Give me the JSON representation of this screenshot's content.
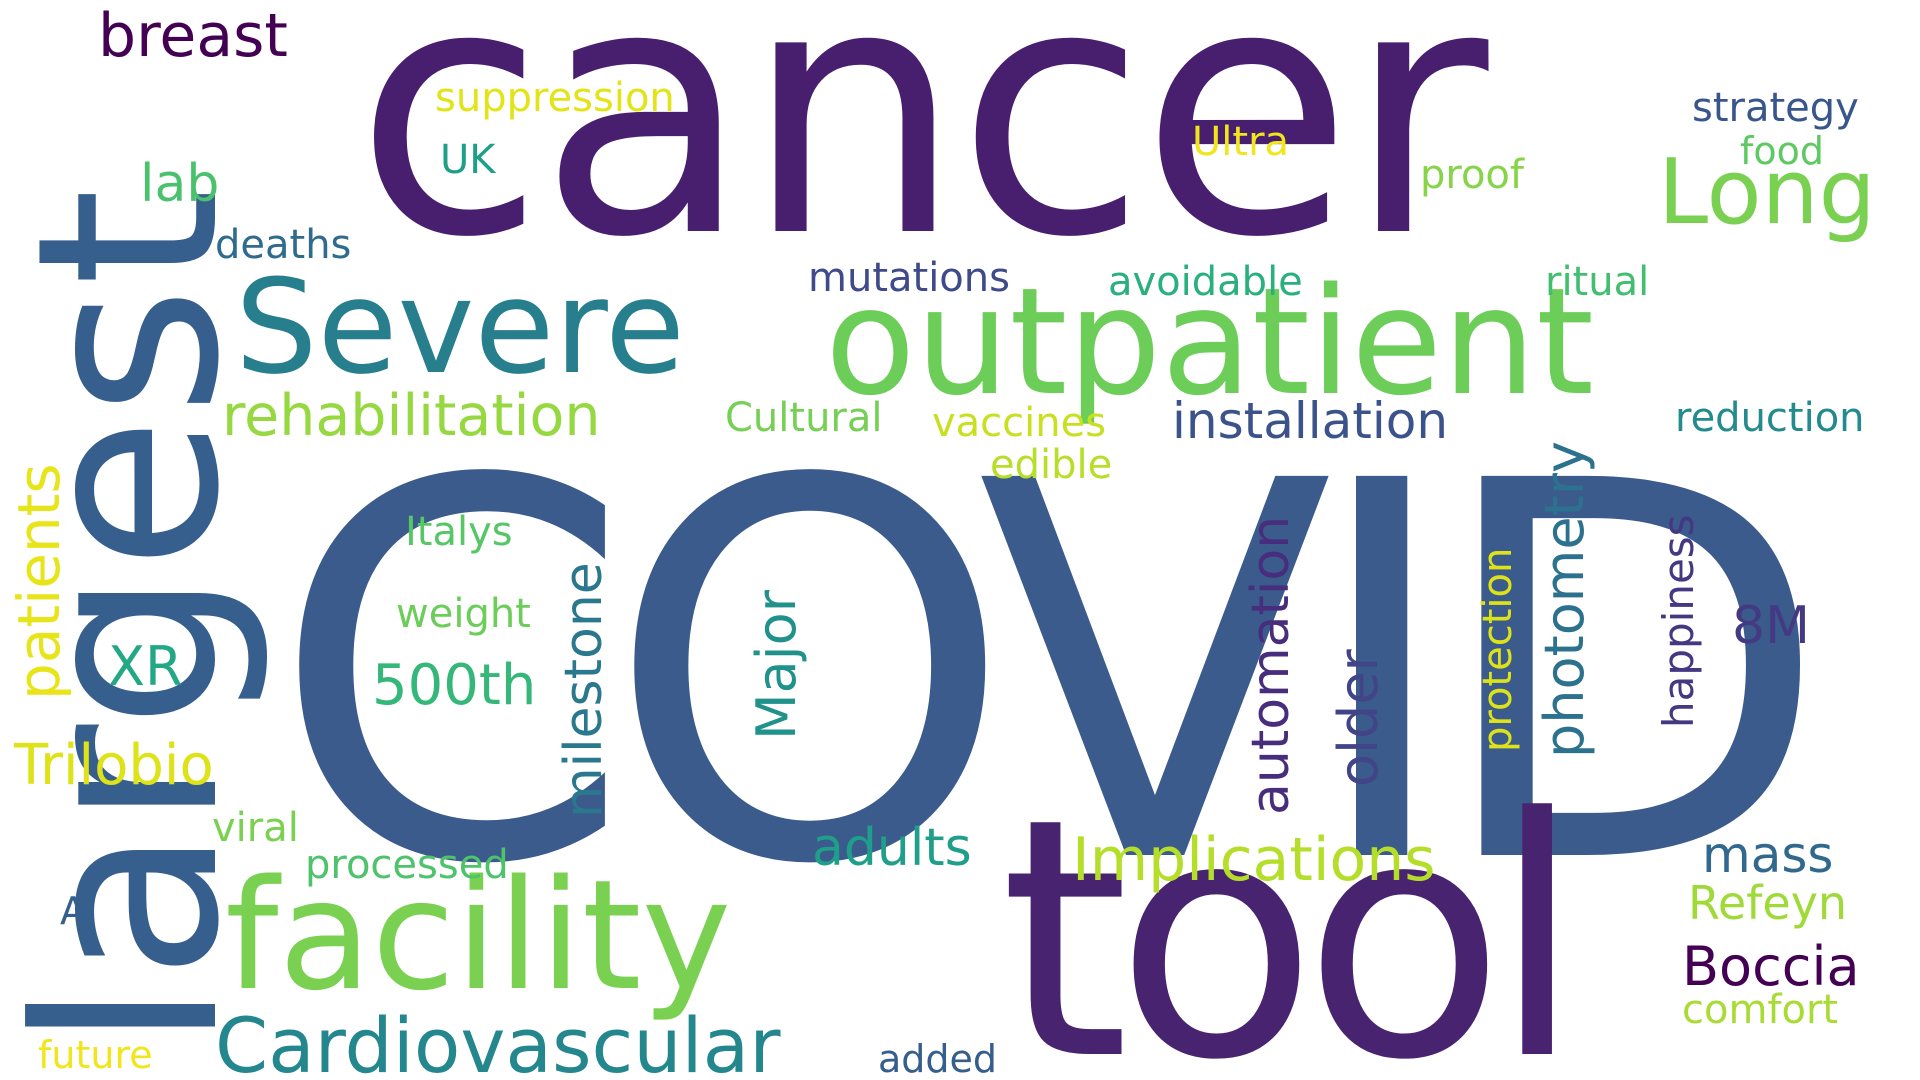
{
  "words": [
    {
      "text": "COVID",
      "color": "#3b5b8c"
    },
    {
      "text": "cancer",
      "color": "#481e6f"
    },
    {
      "text": "tool",
      "color": "#472370"
    },
    {
      "text": "largest",
      "color": "#365f8d"
    },
    {
      "text": "outpatient",
      "color": "#6ccd59"
    },
    {
      "text": "facility",
      "color": "#7ad151"
    },
    {
      "text": "Severe",
      "color": "#277f8e"
    },
    {
      "text": "Long",
      "color": "#7ad151"
    },
    {
      "text": "Cardiovascular",
      "color": "#24878e"
    },
    {
      "text": "breast",
      "color": "#440154"
    },
    {
      "text": "Implications",
      "color": "#b5de2b"
    },
    {
      "text": "rehabilitation",
      "color": "#95d840"
    },
    {
      "text": "installation",
      "color": "#3b528b"
    },
    {
      "text": "photometry",
      "color": "#2c728e"
    },
    {
      "text": "automation",
      "color": "#472d7b"
    },
    {
      "text": "milestone",
      "color": "#2a788e"
    },
    {
      "text": "Major",
      "color": "#21918c"
    },
    {
      "text": "older",
      "color": "#414487"
    },
    {
      "text": "patients",
      "color": "#e7e419"
    },
    {
      "text": "Trilobio",
      "color": "#dde318"
    },
    {
      "text": "500th",
      "color": "#35b779"
    },
    {
      "text": "adults",
      "color": "#1f9e89"
    },
    {
      "text": "Boccia",
      "color": "#440154"
    },
    {
      "text": "mass",
      "color": "#31688e"
    },
    {
      "text": "Refeyn",
      "color": "#a0da39"
    },
    {
      "text": "8M",
      "color": "#443983"
    },
    {
      "text": "happiness",
      "color": "#453781"
    },
    {
      "text": "protection",
      "color": "#dde318"
    },
    {
      "text": "lab",
      "color": "#4ac16d"
    },
    {
      "text": "XR",
      "color": "#22a884"
    },
    {
      "text": "suppression",
      "color": "#e2e418"
    },
    {
      "text": "strategy",
      "color": "#39568c"
    },
    {
      "text": "food",
      "color": "#5ec962"
    },
    {
      "text": "proof",
      "color": "#86d549"
    },
    {
      "text": "Ultra",
      "color": "#f1e51d"
    },
    {
      "text": "UK",
      "color": "#1f9f88"
    },
    {
      "text": "deaths",
      "color": "#2f6b8e"
    },
    {
      "text": "mutations",
      "color": "#3e4a89"
    },
    {
      "text": "avoidable",
      "color": "#2ab07f"
    },
    {
      "text": "ritual",
      "color": "#42be71"
    },
    {
      "text": "reduction",
      "color": "#238a8d"
    },
    {
      "text": "Cultural",
      "color": "#75d054"
    },
    {
      "text": "vaccines",
      "color": "#c8e020"
    },
    {
      "text": "edible",
      "color": "#b8de29"
    },
    {
      "text": "Italys",
      "color": "#56c667"
    },
    {
      "text": "weight",
      "color": "#6ccd5a"
    },
    {
      "text": "viral",
      "color": "#7ad151"
    },
    {
      "text": "processed",
      "color": "#4ec36b"
    },
    {
      "text": "AI",
      "color": "#355f8d"
    },
    {
      "text": "future",
      "color": "#f1e51d"
    },
    {
      "text": "added",
      "color": "#355e8d"
    },
    {
      "text": "comfort",
      "color": "#a8db34"
    }
  ]
}
